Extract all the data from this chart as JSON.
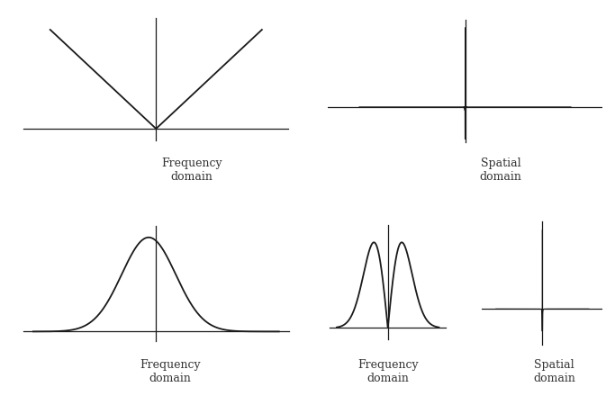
{
  "background_color": "#ffffff",
  "line_color": "#1a1a1a",
  "label_fontsize": 9,
  "label_color": "#333333",
  "plots": [
    {
      "id": "top_left",
      "label": "Frequency\ndomain"
    },
    {
      "id": "top_right",
      "label": "Spatial\ndomain"
    },
    {
      "id": "bot_left",
      "label": "Frequency\ndomain"
    },
    {
      "id": "bot_mid",
      "label": "Frequency\ndomain"
    },
    {
      "id": "bot_right",
      "label": "Spatial\ndomain"
    }
  ],
  "lw_curve": 1.3,
  "lw_axis": 0.9
}
